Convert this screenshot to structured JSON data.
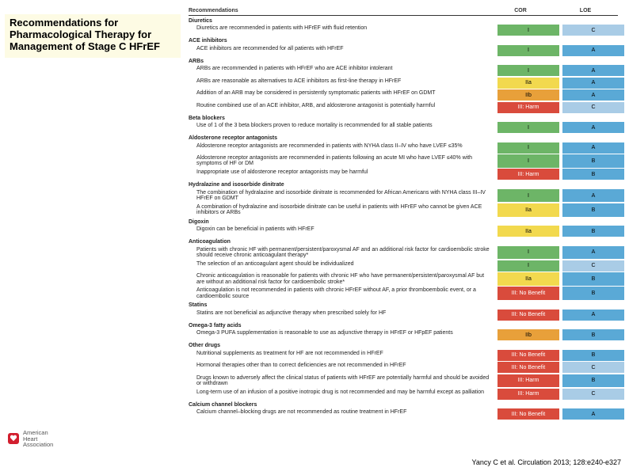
{
  "title": "Recommendations for Pharmacological Therapy for Management of Stage C HFrEF",
  "citation": "Yancy C et al. Circulation 2013; 128:e240-e327",
  "logo": {
    "line1": "American",
    "line2": "Heart",
    "line3": "Association"
  },
  "headers": {
    "rec": "Recommendations",
    "cor": "COR",
    "loe": "LOE"
  },
  "cor_colors": {
    "I": "cor-I",
    "IIa": "cor-IIa",
    "IIb": "cor-IIb",
    "III: Harm": "cor-IIIH",
    "III: No Benefit": "cor-IIINB"
  },
  "loe_colors": {
    "A": "loe-A",
    "B": "loe-B",
    "C": "loe-C"
  },
  "sections": [
    {
      "name": "Diuretics",
      "rows": [
        {
          "rec": "Diuretics are recommended in patients with HFrEF with fluid retention",
          "cor": "I",
          "loe": "C"
        }
      ]
    },
    {
      "name": "ACE inhibitors",
      "rows": [
        {
          "rec": "ACE inhibitors are recommended for all patients with HFrEF",
          "cor": "I",
          "loe": "A"
        }
      ]
    },
    {
      "name": "ARBs",
      "rows": [
        {
          "rec": "ARBs are recommended in patients with HFrEF who are ACE inhibitor intolerant",
          "cor": "I",
          "loe": "A"
        },
        {
          "rec": "ARBs are reasonable as alternatives to ACE inhibitors as first-line therapy in HFrEF",
          "cor": "IIa",
          "loe": "A"
        },
        {
          "rec": "Addition of an ARB may be considered in persistently symptomatic patients with HFrEF on GDMT",
          "cor": "IIb",
          "loe": "A"
        },
        {
          "rec": "Routine combined use of an ACE inhibitor, ARB, and aldosterone antagonist is potentially harmful",
          "cor": "III: Harm",
          "loe": "C"
        }
      ]
    },
    {
      "name": "Beta blockers",
      "rows": [
        {
          "rec": "Use of 1 of the 3 beta blockers proven to reduce mortality is recommended for all stable patients",
          "cor": "I",
          "loe": "A"
        }
      ]
    },
    {
      "name": "Aldosterone receptor antagonists",
      "rows": [
        {
          "rec": "Aldosterone receptor antagonists are recommended in patients with NYHA class II–IV who have LVEF ≤35%",
          "cor": "I",
          "loe": "A"
        },
        {
          "rec": "Aldosterone receptor antagonists are recommended in patients following an acute MI who have LVEF ≤40% with symptoms of HF or DM",
          "cor": "I",
          "loe": "B"
        },
        {
          "rec": "Inappropriate use of aldosterone receptor antagonists may be harmful",
          "cor": "III: Harm",
          "loe": "B"
        }
      ]
    },
    {
      "name": "Hydralazine and isosorbide dinitrate",
      "rows": [
        {
          "rec": "The combination of hydralazine and isosorbide dinitrate is recommended for African Americans with NYHA class III–IV HFrEF on GDMT",
          "cor": "I",
          "loe": "A"
        },
        {
          "rec": "A combination of hydralazine and isosorbide dinitrate can be useful in patients with HFrEF who cannot be given ACE inhibitors or ARBs",
          "cor": "IIa",
          "loe": "B"
        }
      ]
    },
    {
      "name": "Digoxin",
      "rows": [
        {
          "rec": "Digoxin can be beneficial in patients with HFrEF",
          "cor": "IIa",
          "loe": "B"
        }
      ]
    },
    {
      "name": "Anticoagulation",
      "rows": [
        {
          "rec": "Patients with chronic HF with permanent/persistent/paroxysmal AF and an additional risk factor for cardioembolic stroke should receive chronic anticoagulant therapy*",
          "cor": "I",
          "loe": "A"
        },
        {
          "rec": "The selection of an anticoagulant agent should be individualized",
          "cor": "I",
          "loe": "C"
        },
        {
          "rec": "Chronic anticoagulation is reasonable for patients with chronic HF who have permanent/persistent/paroxysmal AF but are without an additional risk factor for cardioembolic stroke*",
          "cor": "IIa",
          "loe": "B"
        },
        {
          "rec": "Anticoagulation is not recommended in patients with chronic HFrEF without AF, a prior thromboembolic event, or a cardioembolic source",
          "cor": "III: No Benefit",
          "loe": "B"
        }
      ]
    },
    {
      "name": "Statins",
      "rows": [
        {
          "rec": "Statins are not beneficial as adjunctive therapy when prescribed solely for HF",
          "cor": "III: No Benefit",
          "loe": "A"
        }
      ]
    },
    {
      "name": "Omega-3 fatty acids",
      "rows": [
        {
          "rec": "Omega-3 PUFA supplementation is reasonable to use as adjunctive therapy in HFrEF or HFpEF patients",
          "cor": "IIb",
          "loe": "B"
        }
      ]
    },
    {
      "name": "Other drugs",
      "rows": [
        {
          "rec": "Nutritional supplements as treatment for HF are not recommended in HFrEF",
          "cor": "III: No Benefit",
          "loe": "B"
        },
        {
          "rec": "Hormonal therapies other than to correct deficiencies are not recommended in HFrEF",
          "cor": "III: No Benefit",
          "loe": "C"
        },
        {
          "rec": "Drugs known to adversely affect the clinical status of patients with HFrEF are potentially harmful and should be avoided or withdrawn",
          "cor": "III: Harm",
          "loe": "B"
        },
        {
          "rec": "Long-term use of an infusion of a positive inotropic drug is not recommended and may be harmful except as palliation",
          "cor": "III: Harm",
          "loe": "C"
        }
      ]
    },
    {
      "name": "Calcium channel blockers",
      "rows": [
        {
          "rec": "Calcium channel–blocking drugs are not recommended as routine treatment in HFrEF",
          "cor": "III: No Benefit",
          "loe": "A"
        }
      ]
    }
  ]
}
